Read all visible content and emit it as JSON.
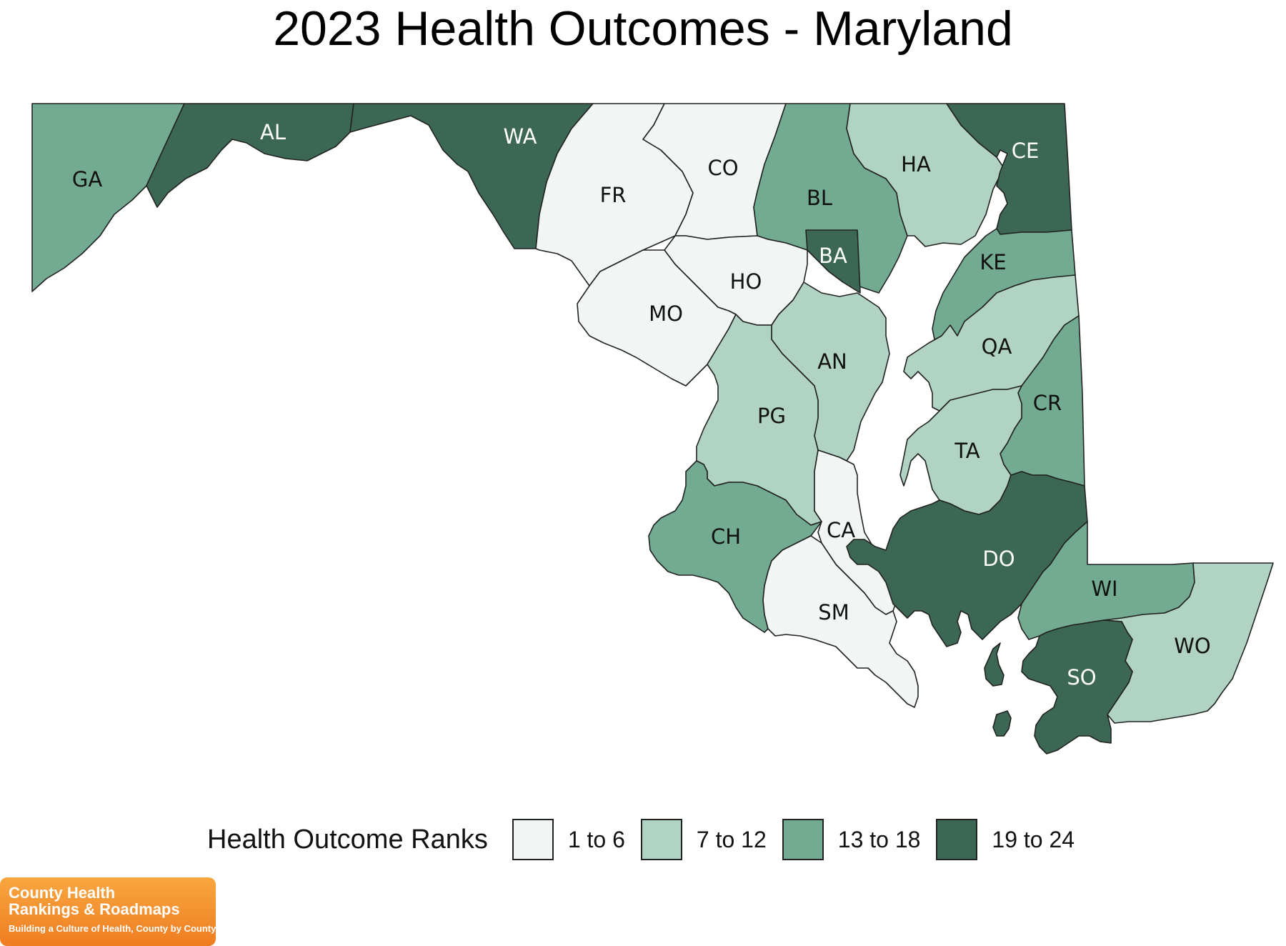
{
  "title": "2023 Health Outcomes - Maryland",
  "legend": {
    "title": "Health Outcome Ranks",
    "items": [
      {
        "label": "1 to 6",
        "color": "#f1f5f3"
      },
      {
        "label": "7 to 12",
        "color": "#b1d3c3"
      },
      {
        "label": "13 to 18",
        "color": "#72ab92"
      },
      {
        "label": "19 to 24",
        "color": "#3c6754"
      }
    ]
  },
  "counties": [
    {
      "abbr": "GA",
      "rank_group": "13 to 18"
    },
    {
      "abbr": "AL",
      "rank_group": "19 to 24"
    },
    {
      "abbr": "WA",
      "rank_group": "19 to 24"
    },
    {
      "abbr": "FR",
      "rank_group": "1 to 6"
    },
    {
      "abbr": "CO",
      "rank_group": "1 to 6"
    },
    {
      "abbr": "BL",
      "rank_group": "13 to 18"
    },
    {
      "abbr": "HA",
      "rank_group": "7 to 12"
    },
    {
      "abbr": "CE",
      "rank_group": "19 to 24"
    },
    {
      "abbr": "BA",
      "rank_group": "19 to 24"
    },
    {
      "abbr": "HO",
      "rank_group": "1 to 6"
    },
    {
      "abbr": "MO",
      "rank_group": "1 to 6"
    },
    {
      "abbr": "KE",
      "rank_group": "13 to 18"
    },
    {
      "abbr": "QA",
      "rank_group": "7 to 12"
    },
    {
      "abbr": "AN",
      "rank_group": "7 to 12"
    },
    {
      "abbr": "PG",
      "rank_group": "7 to 12"
    },
    {
      "abbr": "CR",
      "rank_group": "13 to 18"
    },
    {
      "abbr": "TA",
      "rank_group": "7 to 12"
    },
    {
      "abbr": "CA",
      "rank_group": "1 to 6"
    },
    {
      "abbr": "CH",
      "rank_group": "13 to 18"
    },
    {
      "abbr": "DO",
      "rank_group": "19 to 24"
    },
    {
      "abbr": "WI",
      "rank_group": "13 to 18"
    },
    {
      "abbr": "SM",
      "rank_group": "1 to 6"
    },
    {
      "abbr": "WO",
      "rank_group": "7 to 12"
    },
    {
      "abbr": "SO",
      "rank_group": "19 to 24"
    }
  ],
  "logo": {
    "line1": "County Health",
    "line2": "Rankings & Roadmaps",
    "line3": "Building a Culture of Health, County by County"
  }
}
